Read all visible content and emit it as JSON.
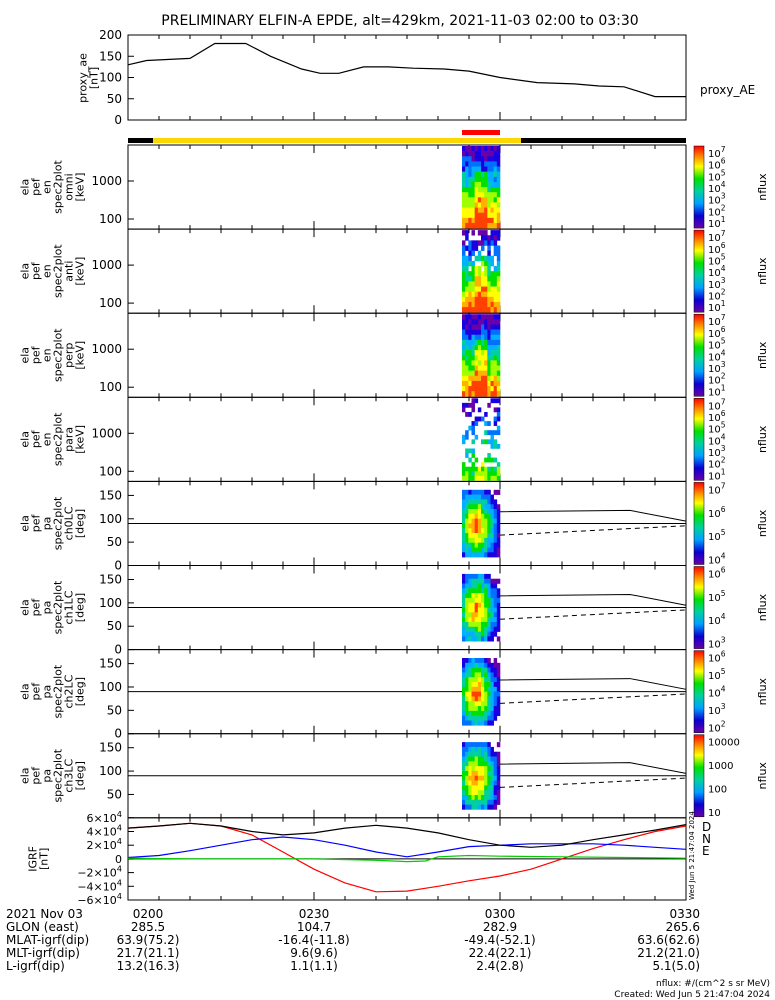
{
  "title": "PRELIMINARY ELFIN-A EPDE, alt=429km, 2021-11-03 02:00 to 03:30",
  "colors": {
    "axis": "#000000",
    "orbit_bar": "#ffd700",
    "science_bar": "#ff0000",
    "bx": "#ff0000",
    "by": "#0000ff",
    "bz": "#00cc00",
    "btot": "#000000"
  },
  "chart_data": {
    "type": "spectrogram-panels",
    "x_range_minutes": [
      0,
      90
    ],
    "x_tick_labels": [
      "0200",
      "0230",
      "0300",
      "0330"
    ],
    "ae": {
      "ylabel_lines": [
        "proxy_ae",
        "[nT]"
      ],
      "ylim": [
        0,
        200
      ],
      "ticks": [
        "0",
        "50",
        "100",
        "150",
        "200"
      ],
      "legend": "proxy_AE",
      "x": [
        0,
        3,
        10,
        14,
        19,
        23,
        28,
        31,
        34,
        38,
        42,
        46,
        51,
        55,
        60,
        66,
        72,
        76,
        80,
        85,
        90
      ],
      "values": [
        130,
        140,
        145,
        180,
        180,
        150,
        120,
        110,
        110,
        125,
        125,
        122,
        120,
        115,
        100,
        88,
        85,
        80,
        78,
        55,
        55
      ]
    },
    "spec_panels": [
      {
        "ylabel_lines": [
          "ela",
          "pef",
          "en",
          "spec2plot",
          "omni",
          "[keV]"
        ],
        "ticks": [
          "1000",
          "100"
        ],
        "type": "energy",
        "full": true
      },
      {
        "ylabel_lines": [
          "ela",
          "pef",
          "en",
          "spec2plot",
          "anti",
          "[keV]"
        ],
        "ticks": [
          "1000",
          "100"
        ],
        "type": "energy",
        "full": false
      },
      {
        "ylabel_lines": [
          "ela",
          "pef",
          "en",
          "spec2plot",
          "perp",
          "[keV]"
        ],
        "ticks": [
          "1000",
          "100"
        ],
        "type": "energy",
        "full": true
      },
      {
        "ylabel_lines": [
          "ela",
          "pef",
          "en",
          "spec2plot",
          "para",
          "[keV]"
        ],
        "ticks": [
          "1000",
          "100"
        ],
        "type": "energy",
        "sparse": true
      },
      {
        "ylabel_lines": [
          "ela",
          "pef",
          "pa",
          "spec2plot",
          "ch0LC",
          "[deg]"
        ],
        "ticks": [
          "150",
          "100",
          "50",
          "0"
        ],
        "type": "pitch"
      },
      {
        "ylabel_lines": [
          "ela",
          "pef",
          "pa",
          "spec2plot",
          "ch1LC",
          "[deg]"
        ],
        "ticks": [
          "150",
          "100",
          "50",
          "0"
        ],
        "type": "pitch"
      },
      {
        "ylabel_lines": [
          "ela",
          "pef",
          "pa",
          "spec2plot",
          "ch2LC",
          "[deg]"
        ],
        "ticks": [
          "150",
          "100",
          "50",
          "0"
        ],
        "type": "pitch"
      },
      {
        "ylabel_lines": [
          "ela",
          "pef",
          "pa",
          "spec2plot",
          "ch3LC",
          "[deg]"
        ],
        "ticks": [
          "150",
          "100",
          "50"
        ],
        "type": "pitch"
      }
    ],
    "colorbars": [
      {
        "label": "nflux",
        "ticks": [
          "10<sup>7</sup>",
          "10<sup>6</sup>",
          "10<sup>5</sup>",
          "10<sup>4</sup>",
          "10<sup>3</sup>",
          "10<sup>2</sup>",
          "10<sup>1</sup>"
        ]
      },
      {
        "label": "nflux",
        "ticks": [
          "10<sup>7</sup>",
          "10<sup>6</sup>",
          "10<sup>5</sup>",
          "10<sup>4</sup>",
          "10<sup>3</sup>",
          "10<sup>2</sup>",
          "10<sup>1</sup>"
        ]
      },
      {
        "label": "nflux",
        "ticks": [
          "10<sup>7</sup>",
          "10<sup>6</sup>",
          "10<sup>5</sup>",
          "10<sup>4</sup>",
          "10<sup>3</sup>",
          "10<sup>2</sup>",
          "10<sup>1</sup>"
        ]
      },
      {
        "label": "nflux",
        "ticks": [
          "10<sup>7</sup>",
          "10<sup>6</sup>",
          "10<sup>5</sup>",
          "10<sup>4</sup>",
          "10<sup>3</sup>",
          "10<sup>2</sup>",
          "10<sup>1</sup>"
        ]
      },
      {
        "label": "nflux",
        "ticks": [
          "10<sup>7</sup>",
          "10<sup>6</sup>",
          "10<sup>5</sup>",
          "10<sup>4</sup>"
        ]
      },
      {
        "label": "nflux",
        "ticks": [
          "10<sup>6</sup>",
          "10<sup>5</sup>",
          "10<sup>4</sup>",
          "10<sup>3</sup>"
        ]
      },
      {
        "label": "nflux",
        "ticks": [
          "10<sup>6</sup>",
          "10<sup>5</sup>",
          "10<sup>4</sup>",
          "10<sup>3</sup>",
          "10<sup>2</sup>"
        ]
      },
      {
        "label": "nflux",
        "ticks": [
          "10000",
          "1000",
          "100",
          "10"
        ]
      }
    ],
    "igrf": {
      "ylabel_lines": [
        "IGRF",
        "[nT]"
      ],
      "ticks": [
        "6×10<sup>4</sup>",
        "4×10<sup>4</sup>",
        "2×10<sup>4</sup>",
        "0",
        "−2×10<sup>4</sup>",
        "−4×10<sup>4</sup>",
        "−6×10<sup>4</sup>"
      ],
      "ylim": [
        -60000,
        60000
      ],
      "component_labels": [
        "D",
        "N",
        "E"
      ],
      "series": [
        {
          "name": "D",
          "color": "#ff0000",
          "x": [
            0,
            5,
            10,
            15,
            20,
            25,
            30,
            35,
            40,
            45,
            50,
            55,
            60,
            65,
            70,
            75,
            80,
            85,
            90
          ],
          "values": [
            45000,
            48000,
            52000,
            48000,
            35000,
            10000,
            -15000,
            -35000,
            -48000,
            -47000,
            -40000,
            -32000,
            -25000,
            -15000,
            0,
            15000,
            28000,
            40000,
            48000
          ]
        },
        {
          "name": "N",
          "color": "#0000ff",
          "x": [
            0,
            5,
            10,
            15,
            20,
            25,
            30,
            35,
            40,
            45,
            50,
            55,
            60,
            65,
            70,
            75,
            80,
            85,
            90
          ],
          "values": [
            2000,
            5000,
            12000,
            20000,
            28000,
            32000,
            28000,
            20000,
            10000,
            3000,
            10000,
            18000,
            20000,
            22000,
            22000,
            22000,
            20000,
            17000,
            14000
          ]
        },
        {
          "name": "E",
          "color": "#00cc00",
          "x": [
            0,
            10,
            20,
            30,
            40,
            45,
            48,
            50,
            55,
            60,
            70,
            80,
            90
          ],
          "values": [
            1000,
            0,
            0,
            0,
            -2000,
            -4000,
            -3000,
            3000,
            5000,
            4000,
            3000,
            2000,
            1000
          ]
        },
        {
          "name": "Btot",
          "color": "#000000",
          "x": [
            0,
            5,
            10,
            15,
            20,
            25,
            30,
            35,
            40,
            45,
            50,
            55,
            60,
            65,
            70,
            75,
            80,
            85,
            90
          ],
          "values": [
            45000,
            48000,
            52000,
            48000,
            40000,
            35000,
            38000,
            45000,
            49000,
            45000,
            38000,
            28000,
            20000,
            17000,
            20000,
            28000,
            35000,
            42000,
            50000
          ]
        }
      ]
    }
  },
  "footer": {
    "rows": [
      {
        "label": "2021 Nov 03",
        "values": [
          "0200",
          "0230",
          "0300",
          "0330"
        ]
      },
      {
        "label": "GLON (east)",
        "values": [
          "285.5",
          "104.7",
          "282.9",
          "265.6"
        ]
      },
      {
        "label": "MLAT-igrf(dip)",
        "values": [
          "63.9(75.2)",
          "-16.4(-11.8)",
          "-49.4(-52.1)",
          "63.6(62.6)"
        ]
      },
      {
        "label": "MLT-igrf(dip)",
        "values": [
          "21.7(21.1)",
          "9.6(9.6)",
          "22.4(22.1)",
          "21.2(21.0)"
        ]
      },
      {
        "label": "L-igrf(dip)",
        "values": [
          "13.2(16.3)",
          "1.1(1.1)",
          "2.4(2.8)",
          "5.1(5.0)"
        ]
      }
    ],
    "units": "nflux: #/(cm^2 s sr MeV)",
    "created": "Created: Wed Jun  5 21:47:04 2024",
    "side_stamp": "Wed Jun  5 21:47:04 2024"
  }
}
